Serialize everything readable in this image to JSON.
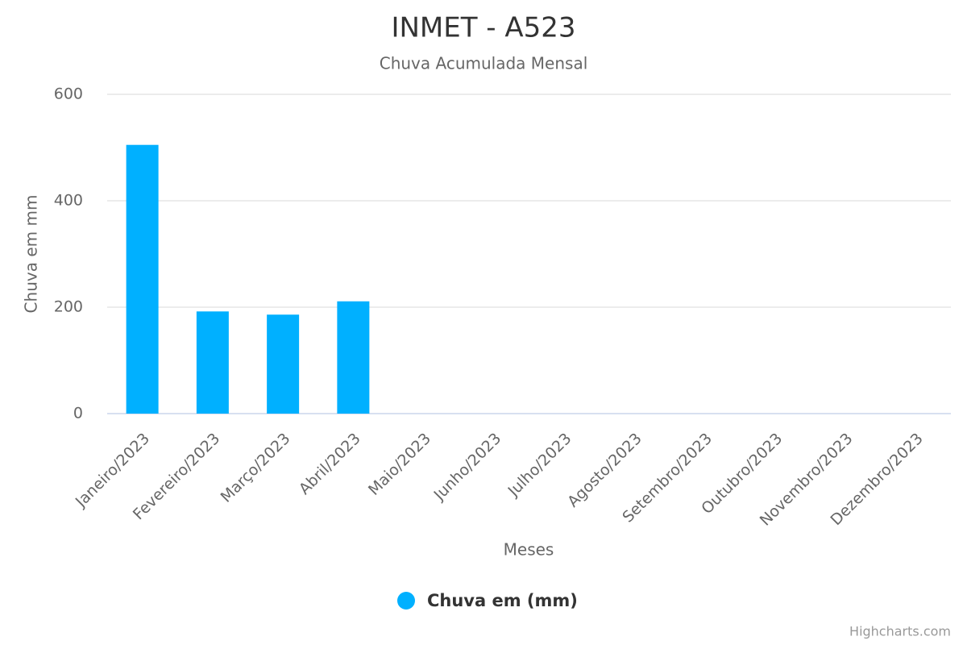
{
  "chart_data": {
    "type": "bar",
    "title": "INMET - A523",
    "subtitle": "Chuva Acumulada Mensal",
    "x_label": "Meses",
    "y_label": "Chuva em mm",
    "categories": [
      "Janeiro/2023",
      "Fevereiro/2023",
      "Março/2023",
      "Abril/2023",
      "Maio/2023",
      "Junho/2023",
      "Julho/2023",
      "Agosto/2023",
      "Setembro/2023",
      "Outubro/2023",
      "Novembro/2023",
      "Dezembro/2023"
    ],
    "series": [
      {
        "name": "Chuva em (mm)",
        "color": "#00b0ff",
        "values": [
          505,
          192,
          186,
          211,
          null,
          null,
          null,
          null,
          null,
          null,
          null,
          null
        ]
      }
    ],
    "ylim": [
      0,
      600
    ],
    "yticks": [
      0,
      200,
      400,
      600
    ],
    "grid": true,
    "legend": "bottom",
    "credits": "Highcharts.com"
  }
}
